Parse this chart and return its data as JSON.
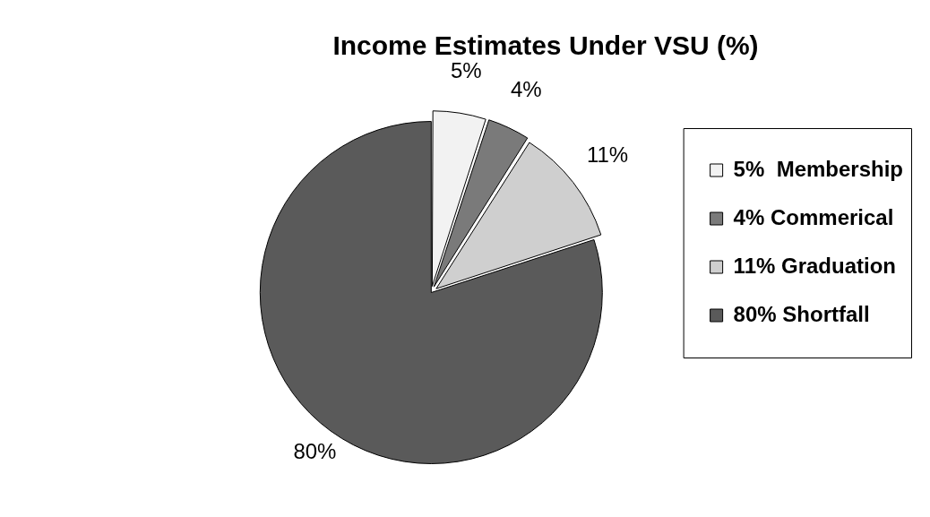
{
  "chart_data": {
    "type": "pie",
    "title": "Income Estimates Under VSU (%)",
    "categories": [
      "5%  Membership",
      "4% Commerical",
      "11% Graduation",
      "80% Shortfall"
    ],
    "values": [
      5,
      4,
      11,
      80
    ],
    "colors": [
      "#f2f2f2",
      "#7a7a7a",
      "#cfcfcf",
      "#5a5a5a"
    ],
    "value_labels": [
      "5%",
      "4%",
      "11%",
      "80%"
    ],
    "legend": "right"
  }
}
